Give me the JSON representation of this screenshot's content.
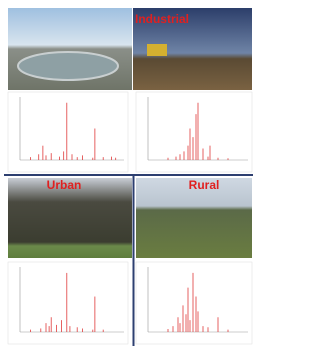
{
  "section_titles": [
    "Industrial",
    "Urban",
    "Rural"
  ],
  "chart_data": [
    {
      "type": "stem",
      "color": "#e03a3a",
      "xlim": [
        0,
        100
      ],
      "ylim": [
        0,
        110
      ],
      "x": [
        10,
        18,
        22,
        25,
        30,
        38,
        42,
        45,
        50,
        55,
        60,
        70,
        72,
        80,
        88,
        92
      ],
      "values": [
        5,
        10,
        25,
        8,
        12,
        6,
        15,
        100,
        10,
        5,
        8,
        4,
        55,
        5,
        6,
        4
      ]
    },
    {
      "type": "stem",
      "color": "#e03a3a",
      "xlim": [
        0,
        100
      ],
      "ylim": [
        0,
        110
      ],
      "x": [
        20,
        28,
        32,
        36,
        40,
        42,
        45,
        48,
        50,
        55,
        60,
        62,
        70,
        80
      ],
      "values": [
        4,
        6,
        10,
        15,
        25,
        55,
        40,
        80,
        100,
        20,
        6,
        25,
        4,
        3
      ]
    },
    {
      "type": "stem",
      "color": "#e03a3a",
      "xlim": [
        0,
        100
      ],
      "ylim": [
        0,
        110
      ],
      "x": [
        10,
        20,
        25,
        28,
        30,
        35,
        40,
        45,
        48,
        55,
        60,
        70,
        72,
        80
      ],
      "values": [
        4,
        6,
        15,
        10,
        25,
        12,
        20,
        100,
        10,
        8,
        6,
        4,
        60,
        4
      ]
    },
    {
      "type": "stem",
      "color": "#e03a3a",
      "xlim": [
        0,
        100
      ],
      "ylim": [
        0,
        110
      ],
      "x": [
        20,
        25,
        30,
        32,
        35,
        38,
        40,
        42,
        45,
        48,
        50,
        55,
        60,
        70,
        80
      ],
      "values": [
        5,
        10,
        25,
        15,
        45,
        30,
        75,
        20,
        100,
        60,
        35,
        10,
        8,
        25,
        4
      ]
    }
  ]
}
